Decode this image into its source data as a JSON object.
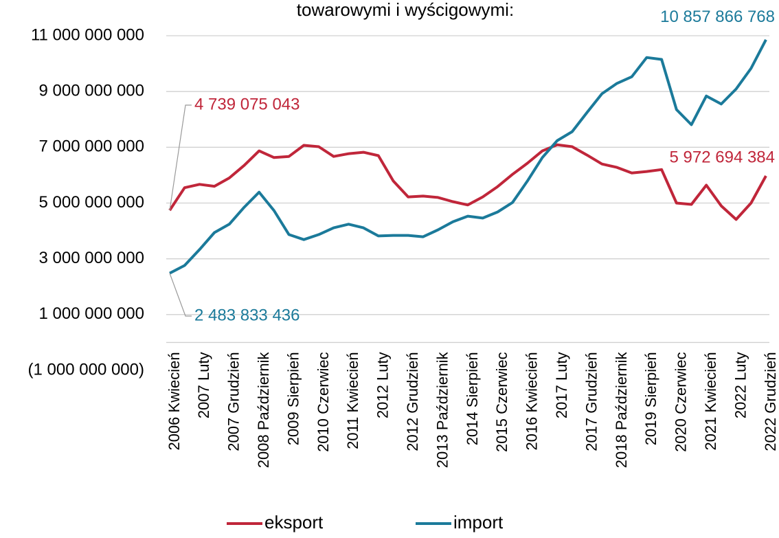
{
  "chart_data": {
    "type": "line",
    "title": "towarowymi i wyścigowymi:",
    "categories": [
      "2006 Kwiecień",
      null,
      "2007 Luty",
      null,
      "2007 Grudzień",
      null,
      "2008 Październik",
      null,
      "2009 Sierpień",
      null,
      "2010 Czerwiec",
      null,
      "2011 Kwiecień",
      null,
      "2012 Luty",
      null,
      "2012 Grudzień",
      null,
      "2013 Październik",
      null,
      "2014 Sierpień",
      null,
      "2015 Czerwiec",
      null,
      "2016 Kwiecień",
      null,
      "2017 Luty",
      null,
      "2017 Grudzień",
      null,
      "2018 Październik",
      null,
      "2019 Sierpień",
      null,
      "2020 Czerwiec",
      null,
      "2021 Kwiecień",
      null,
      "2022 Luty",
      null,
      "2022 Grudzień"
    ],
    "series": [
      {
        "name": "eksport",
        "color": "#c0263a",
        "values": [
          4739075043,
          5550000000,
          5670000000,
          5600000000,
          5900000000,
          6350000000,
          6870000000,
          6630000000,
          6670000000,
          7070000000,
          7020000000,
          6670000000,
          6770000000,
          6820000000,
          6700000000,
          5790000000,
          5220000000,
          5250000000,
          5200000000,
          5050000000,
          4930000000,
          5220000000,
          5590000000,
          6030000000,
          6430000000,
          6870000000,
          7090000000,
          7020000000,
          6720000000,
          6400000000,
          6280000000,
          6080000000,
          6130000000,
          6200000000,
          5000000000,
          4950000000,
          5640000000,
          4900000000,
          4410000000,
          5000000000,
          5972694384
        ],
        "value_labels": [
          "4 739 075 043",
          null,
          null,
          null,
          null,
          null,
          null,
          null,
          null,
          null,
          null,
          null,
          null,
          null,
          null,
          null,
          null,
          null,
          null,
          null,
          null,
          null,
          null,
          null,
          null,
          null,
          null,
          null,
          null,
          null,
          null,
          null,
          null,
          null,
          null,
          null,
          null,
          null,
          null,
          null,
          "5 972 694 384"
        ]
      },
      {
        "name": "import",
        "color": "#1b7a9a",
        "values": [
          2483833436,
          2760000000,
          3330000000,
          3940000000,
          4240000000,
          4850000000,
          5390000000,
          4730000000,
          3870000000,
          3690000000,
          3870000000,
          4110000000,
          4240000000,
          4110000000,
          3820000000,
          3840000000,
          3840000000,
          3790000000,
          4040000000,
          4330000000,
          4530000000,
          4460000000,
          4680000000,
          5020000000,
          5790000000,
          6630000000,
          7240000000,
          7560000000,
          8250000000,
          8920000000,
          9290000000,
          9530000000,
          10220000000,
          10150000000,
          8350000000,
          7810000000,
          8840000000,
          8550000000,
          9090000000,
          9830000000,
          10857866768
        ],
        "value_labels": [
          "2 483 833 436",
          null,
          null,
          null,
          null,
          null,
          null,
          null,
          null,
          null,
          null,
          null,
          null,
          null,
          null,
          null,
          null,
          null,
          null,
          null,
          null,
          null,
          null,
          null,
          null,
          null,
          null,
          null,
          null,
          null,
          null,
          null,
          null,
          null,
          null,
          null,
          null,
          null,
          null,
          null,
          "10 857 866 768"
        ]
      }
    ],
    "ylim": [
      -1000000000,
      11000000000
    ],
    "yticks": [
      {
        "value": -1000000000,
        "label": "(1 000 000 000)"
      },
      {
        "value": 1000000000,
        "label": "1 000 000 000"
      },
      {
        "value": 3000000000,
        "label": "3 000 000 000"
      },
      {
        "value": 5000000000,
        "label": "5 000 000 000"
      },
      {
        "value": 7000000000,
        "label": "7 000 000 000"
      },
      {
        "value": 9000000000,
        "label": "9 000 000 000"
      },
      {
        "value": 11000000000,
        "label": "11 000 000 000"
      }
    ],
    "grid": true
  }
}
